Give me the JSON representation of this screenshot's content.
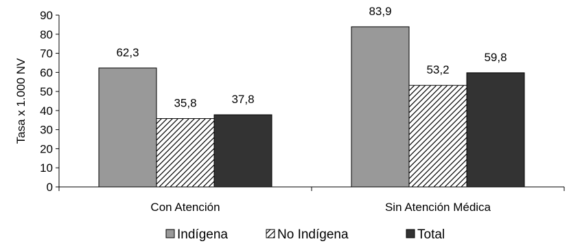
{
  "chart_data": {
    "type": "bar",
    "title": "",
    "xlabel": "",
    "ylabel": "Tasa x 1.000 NV",
    "ylim": [
      0,
      90
    ],
    "yticks": [
      0,
      10,
      20,
      30,
      40,
      50,
      60,
      70,
      80,
      90
    ],
    "grid": false,
    "legend_position": "bottom",
    "categories": [
      "Con Atención",
      "Sin Atención Médica"
    ],
    "series": [
      {
        "name": "Indígena",
        "values": [
          62.3,
          83.9
        ],
        "value_labels": [
          "62,3",
          "83,9"
        ],
        "color": "#999999",
        "pattern": "solid"
      },
      {
        "name": "No Indígena",
        "values": [
          35.8,
          53.2
        ],
        "value_labels": [
          "35,8",
          "53,2"
        ],
        "color": "#ffffff",
        "pattern": "diagonal-hatch"
      },
      {
        "name": "Total",
        "values": [
          37.8,
          59.8
        ],
        "value_labels": [
          "37,8",
          "59,8"
        ],
        "color": "#333333",
        "pattern": "solid"
      }
    ]
  }
}
